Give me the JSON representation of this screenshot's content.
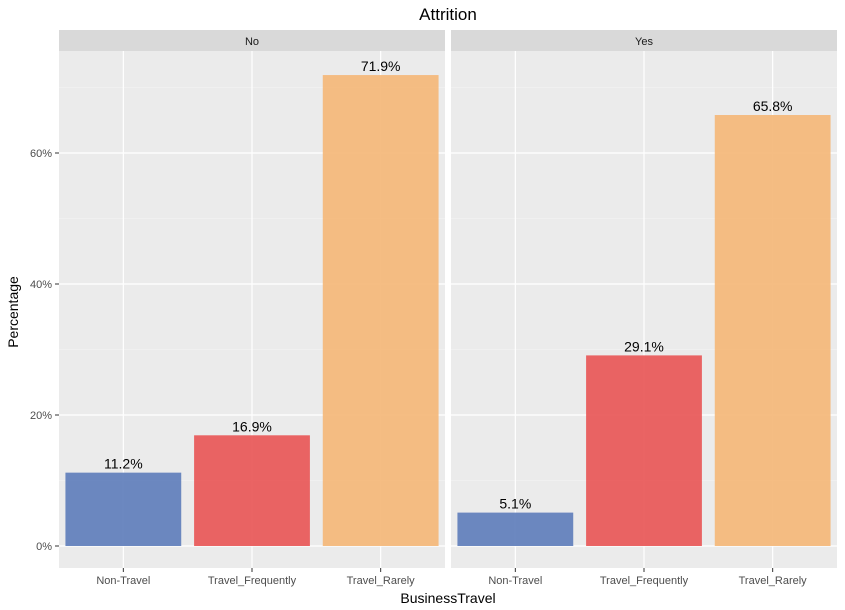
{
  "chart_data": {
    "type": "bar",
    "title": "Attrition",
    "xlabel": "BusinessTravel",
    "ylabel": "Percentage",
    "categories": [
      "Non-Travel",
      "Travel_Frequently",
      "Travel_Rarely"
    ],
    "category_colors": [
      "#6482bd",
      "#e95c5c",
      "#f4b97c"
    ],
    "ylim": [
      0,
      76
    ],
    "yticks": [
      0,
      20,
      40,
      60
    ],
    "ytick_labels": [
      "0%",
      "20%",
      "40%",
      "60%"
    ],
    "grid": true,
    "legend": "none",
    "facets": [
      {
        "name": "No",
        "values": [
          11.2,
          16.9,
          71.9
        ],
        "labels": [
          "11.2%",
          "16.9%",
          "71.9%"
        ]
      },
      {
        "name": "Yes",
        "values": [
          5.1,
          29.1,
          65.8
        ],
        "labels": [
          "5.1%",
          "29.1%",
          "65.8%"
        ]
      }
    ]
  }
}
